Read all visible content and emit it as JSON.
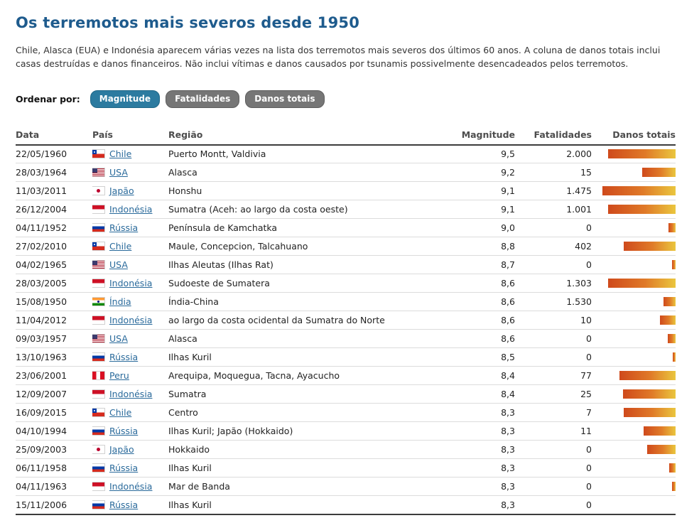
{
  "page": {
    "title": "Os terremotos mais severos desde 1950",
    "intro": "Chile, Alasca (EUA) e Indonésia aparecem várias vezes na lista dos terremotos mais severos dos últimos 60 anos. A coluna de danos totais inclui casas destruídas e danos financeiros. Não inclui vítimas e danos causados por tsunamis possivelmente desencadeados pelos terremotos.",
    "sort": {
      "label": "Ordenar por:",
      "buttons": [
        {
          "label": "Magnitude",
          "active": true
        },
        {
          "label": "Fatalidades",
          "active": false
        },
        {
          "label": "Danos totais",
          "active": false
        }
      ]
    }
  },
  "table": {
    "headers": [
      "Data",
      "País",
      "Região",
      "Magnitude",
      "Fatalidades",
      "Danos totais"
    ],
    "rows": [
      {
        "date": "22/05/1960",
        "country": "Chile",
        "flag": "cl",
        "region": "Puerto Montt, Valdivia",
        "magnitude": "9,5",
        "fatalities": "2.000",
        "damage_pct": 92
      },
      {
        "date": "28/03/1964",
        "country": "USA",
        "flag": "us",
        "region": "Alasca",
        "magnitude": "9,2",
        "fatalities": "15",
        "damage_pct": 46
      },
      {
        "date": "11/03/2011",
        "country": "Japão",
        "flag": "jp",
        "region": "Honshu",
        "magnitude": "9,1",
        "fatalities": "1.475",
        "damage_pct": 100
      },
      {
        "date": "26/12/2004",
        "country": "Indonésia",
        "flag": "id",
        "region": "Sumatra (Aceh: ao largo da costa oeste)",
        "magnitude": "9,1",
        "fatalities": "1.001",
        "damage_pct": 92
      },
      {
        "date": "04/11/1952",
        "country": "Rússia",
        "flag": "ru",
        "region": "Península de Kamchatka",
        "magnitude": "9,0",
        "fatalities": "0",
        "damage_pct": 10
      },
      {
        "date": "27/02/2010",
        "country": "Chile",
        "flag": "cl",
        "region": "Maule, Concepcion, Talcahuano",
        "magnitude": "8,8",
        "fatalities": "402",
        "damage_pct": 71
      },
      {
        "date": "04/02/1965",
        "country": "USA",
        "flag": "us",
        "region": "Ilhas Aleutas (Ilhas Rat)",
        "magnitude": "8,7",
        "fatalities": "0",
        "damage_pct": 5
      },
      {
        "date": "28/03/2005",
        "country": "Indonésia",
        "flag": "id",
        "region": "Sudoeste de Sumatera",
        "magnitude": "8,6",
        "fatalities": "1.303",
        "damage_pct": 92
      },
      {
        "date": "15/08/1950",
        "country": "Índia",
        "flag": "in",
        "region": "Índia-China",
        "magnitude": "8,6",
        "fatalities": "1.530",
        "damage_pct": 17
      },
      {
        "date": "11/04/2012",
        "country": "Indonésia",
        "flag": "id",
        "region": "ao largo da costa ocidental da Sumatra do Norte",
        "magnitude": "8,6",
        "fatalities": "10",
        "damage_pct": 21
      },
      {
        "date": "09/03/1957",
        "country": "USA",
        "flag": "us",
        "region": "Alasca",
        "magnitude": "8,6",
        "fatalities": "0",
        "damage_pct": 11
      },
      {
        "date": "13/10/1963",
        "country": "Rússia",
        "flag": "ru",
        "region": "Ilhas Kuril",
        "magnitude": "8,5",
        "fatalities": "0",
        "damage_pct": 4
      },
      {
        "date": "23/06/2001",
        "country": "Peru",
        "flag": "pe",
        "region": "Arequipa, Moquegua, Tacna, Ayacucho",
        "magnitude": "8,4",
        "fatalities": "77",
        "damage_pct": 77
      },
      {
        "date": "12/09/2007",
        "country": "Indonésia",
        "flag": "id",
        "region": "Sumatra",
        "magnitude": "8,4",
        "fatalities": "25",
        "damage_pct": 72
      },
      {
        "date": "16/09/2015",
        "country": "Chile",
        "flag": "cl",
        "region": "Centro",
        "magnitude": "8,3",
        "fatalities": "7",
        "damage_pct": 71
      },
      {
        "date": "04/10/1994",
        "country": "Rússia",
        "flag": "ru",
        "region": "Ilhas Kuril; Japão (Hokkaido)",
        "magnitude": "8,3",
        "fatalities": "11",
        "damage_pct": 44
      },
      {
        "date": "25/09/2003",
        "country": "Japão",
        "flag": "jp",
        "region": "Hokkaido",
        "magnitude": "8,3",
        "fatalities": "0",
        "damage_pct": 39
      },
      {
        "date": "06/11/1958",
        "country": "Rússia",
        "flag": "ru",
        "region": "Ilhas Kuril",
        "magnitude": "8,3",
        "fatalities": "0",
        "damage_pct": 9
      },
      {
        "date": "04/11/1963",
        "country": "Indonésia",
        "flag": "id",
        "region": "Mar de Banda",
        "magnitude": "8,3",
        "fatalities": "0",
        "damage_pct": 5
      },
      {
        "date": "15/11/2006",
        "country": "Rússia",
        "flag": "ru",
        "region": "Ilhas Kuril",
        "magnitude": "8,3",
        "fatalities": "0",
        "damage_pct": 0
      }
    ]
  },
  "chart_data": {
    "type": "table",
    "title": "Os terremotos mais severos desde 1950",
    "sorted_by": "Magnitude",
    "columns": [
      "Data",
      "País",
      "Região",
      "Magnitude",
      "Fatalidades",
      "Danos totais (comprimento da barra, % da barra máxima)"
    ],
    "rows": [
      [
        "22/05/1960",
        "Chile",
        "Puerto Montt, Valdivia",
        9.5,
        2000,
        92
      ],
      [
        "28/03/1964",
        "USA",
        "Alasca",
        9.2,
        15,
        46
      ],
      [
        "11/03/2011",
        "Japão",
        "Honshu",
        9.1,
        1475,
        100
      ],
      [
        "26/12/2004",
        "Indonésia",
        "Sumatra (Aceh: ao largo da costa oeste)",
        9.1,
        1001,
        92
      ],
      [
        "04/11/1952",
        "Rússia",
        "Península de Kamchatka",
        9.0,
        0,
        10
      ],
      [
        "27/02/2010",
        "Chile",
        "Maule, Concepcion, Talcahuano",
        8.8,
        402,
        71
      ],
      [
        "04/02/1965",
        "USA",
        "Ilhas Aleutas (Ilhas Rat)",
        8.7,
        0,
        5
      ],
      [
        "28/03/2005",
        "Indonésia",
        "Sudoeste de Sumatera",
        8.6,
        1303,
        92
      ],
      [
        "15/08/1950",
        "Índia",
        "Índia-China",
        8.6,
        1530,
        17
      ],
      [
        "11/04/2012",
        "Indonésia",
        "ao largo da costa ocidental da Sumatra do Norte",
        8.6,
        10,
        21
      ],
      [
        "09/03/1957",
        "USA",
        "Alasca",
        8.6,
        0,
        11
      ],
      [
        "13/10/1963",
        "Rússia",
        "Ilhas Kuril",
        8.5,
        0,
        4
      ],
      [
        "23/06/2001",
        "Peru",
        "Arequipa, Moquegua, Tacna, Ayacucho",
        8.4,
        77,
        77
      ],
      [
        "12/09/2007",
        "Indonésia",
        "Sumatra",
        8.4,
        25,
        72
      ],
      [
        "16/09/2015",
        "Chile",
        "Centro",
        8.3,
        7,
        71
      ],
      [
        "04/10/1994",
        "Rússia",
        "Ilhas Kuril; Japão (Hokkaido)",
        8.3,
        11,
        44
      ],
      [
        "25/09/2003",
        "Japão",
        "Hokkaido",
        8.3,
        0,
        39
      ],
      [
        "06/11/1958",
        "Rússia",
        "Ilhas Kuril",
        8.3,
        0,
        9
      ],
      [
        "04/11/1963",
        "Indonésia",
        "Mar de Banda",
        8.3,
        0,
        5
      ],
      [
        "15/11/2006",
        "Rússia",
        "Ilhas Kuril",
        8.3,
        0,
        0
      ]
    ],
    "notes": "Coluna 'Danos totais' é mostrada como barras horizontais alinhadas à direita com gradiente vermelho-laranja para amarelo; valores em % relativos à barra mais longa (Japão 11/03/2011).",
    "bar_gradient": [
      "#cf4a1c",
      "#eac63e"
    ],
    "accent_colors": {
      "title": "#1e5b8d",
      "active_button": "#2c7ba0",
      "inactive_button": "#767676",
      "link": "#2a6a9b"
    }
  }
}
